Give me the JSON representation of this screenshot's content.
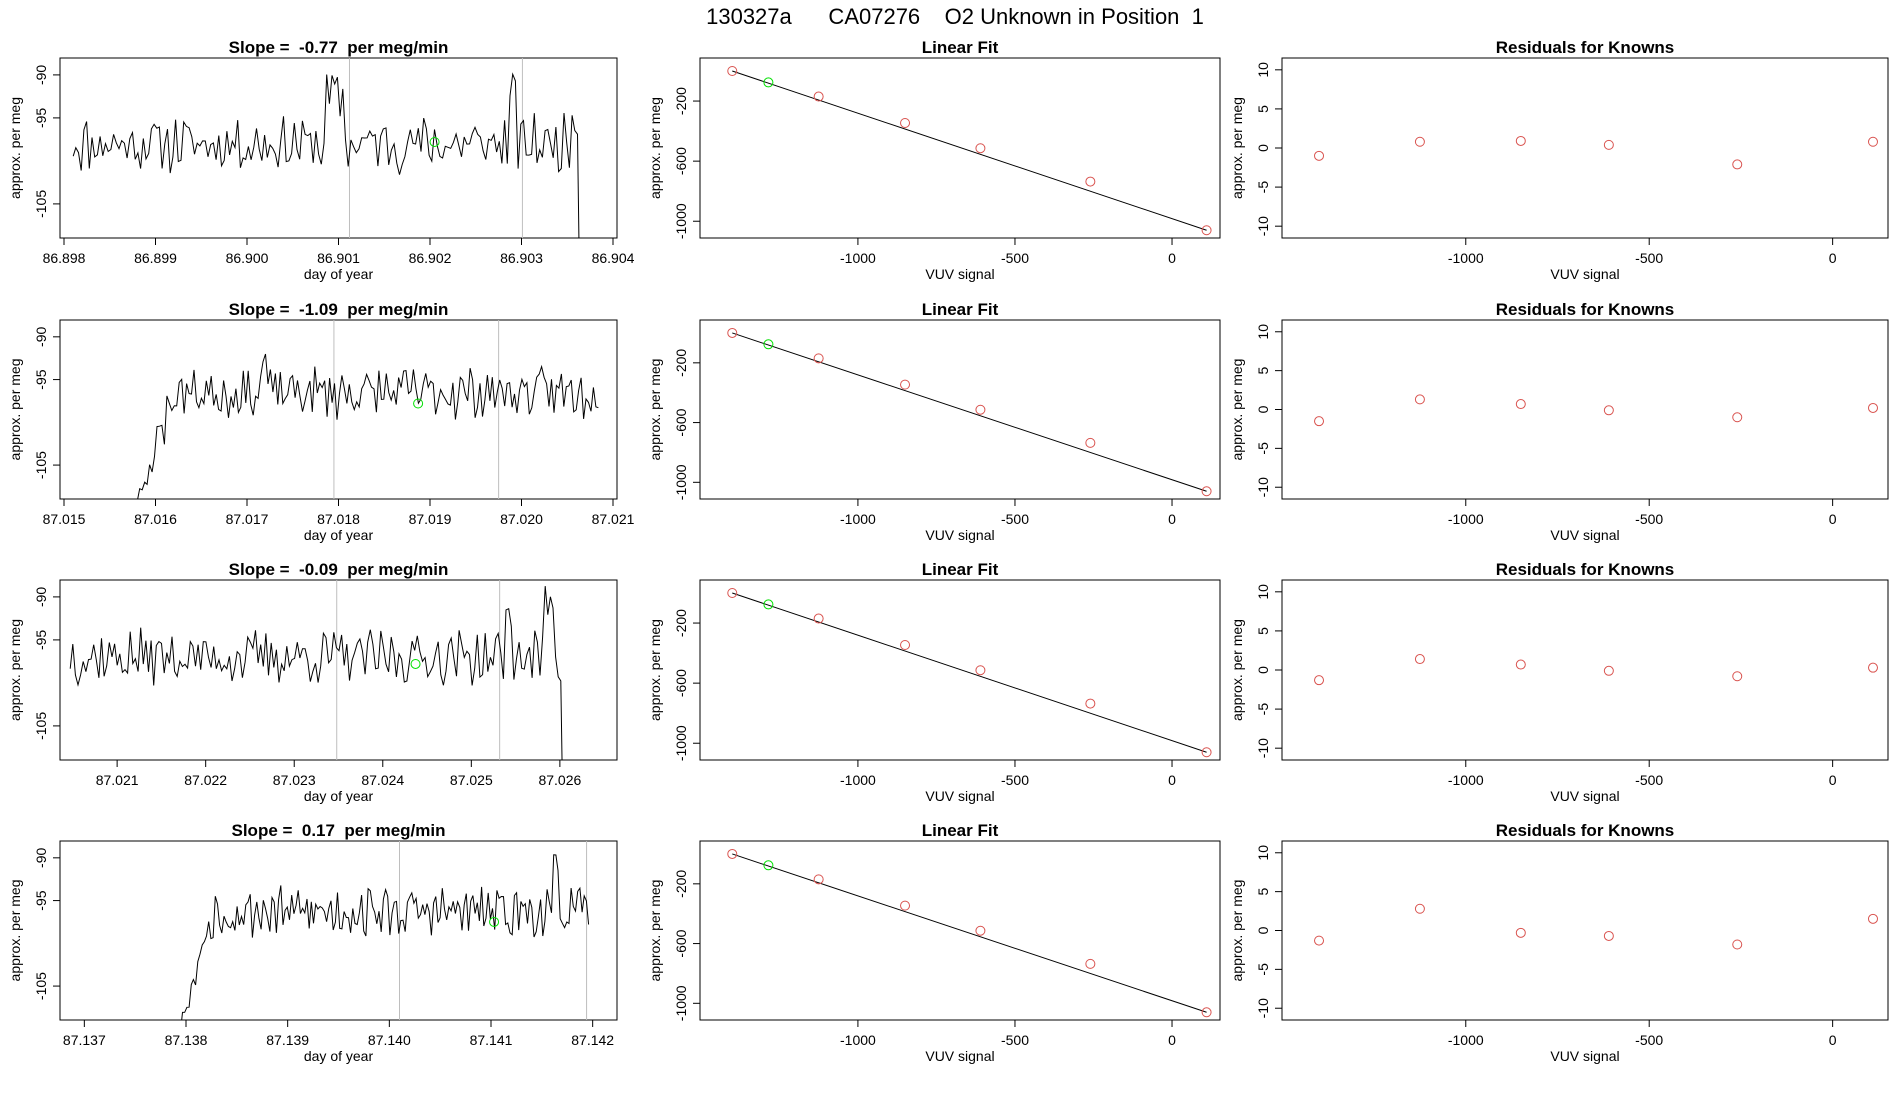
{
  "page_title": "130327a      CA07276    O2 Unknown in Position  1",
  "colors": {
    "trace": "#000000",
    "vline": "#bebebe",
    "known_point": "#d9534f",
    "unknown_point": "#00e000",
    "fit_line": "#000000"
  },
  "chart_data": [
    {
      "type": "line",
      "row": 0,
      "kind": "timeseries",
      "title": "Slope =  -0.77  per meg/min",
      "xlabel": "day of year",
      "ylabel": "approx. per meg",
      "xlim": [
        86.898,
        86.904
      ],
      "ylim": [
        -108.5,
        -88.5
      ],
      "xticks": [
        "86.898",
        "86.899",
        "86.900",
        "86.901",
        "86.902",
        "86.903",
        "86.904"
      ],
      "yticks": [
        -105,
        -95,
        -90
      ],
      "t_start": 86.8981,
      "t_end": 86.9037,
      "seed": 11,
      "base": -98,
      "noise": 2.8,
      "features": [
        [
          86.90085,
          86.90105,
          5.5
        ],
        [
          86.90285,
          86.90295,
          5.0
        ],
        [
          86.90355,
          86.90362,
          3.5
        ]
      ],
      "drop_at": 86.90362,
      "rise_until": null,
      "vlines": [
        86.90112,
        86.90301
      ],
      "unknown": {
        "x": 86.90205,
        "y": -97.8
      }
    },
    {
      "type": "line",
      "row": 0,
      "kind": "linearfit",
      "title": "Linear Fit",
      "xlabel": "VUV signal",
      "ylabel": "approx. per meg",
      "xlim": [
        -1490,
        140
      ],
      "ylim": [
        -1085,
        60
      ],
      "xticks": [
        -1000,
        -500,
        0
      ],
      "yticks": [
        -1000,
        -600,
        -200
      ],
      "fit": {
        "x": [
          -1400,
          110
        ],
        "y": [
          0,
          -1060
        ]
      },
      "knowns": {
        "x": [
          -1400,
          -1125,
          -850,
          -610,
          -260,
          110
        ],
        "y": [
          0,
          -170,
          -346,
          -514,
          -736,
          -1060
        ]
      },
      "unknown": {
        "x": -1285,
        "y": -76
      }
    },
    {
      "type": "scatter",
      "row": 0,
      "kind": "residuals",
      "title": "Residuals for Knowns",
      "xlabel": "VUV signal",
      "ylabel": "approx. per meg",
      "xlim": [
        -1490,
        140
      ],
      "ylim": [
        -11,
        11
      ],
      "xticks": [
        -1000,
        -500,
        0
      ],
      "yticks": [
        -10,
        -5,
        0,
        5,
        10
      ],
      "x": [
        -1400,
        -1125,
        -850,
        -610,
        -260,
        110
      ],
      "y": [
        -1.0,
        0.8,
        0.9,
        0.4,
        -2.1,
        0.8
      ]
    },
    {
      "type": "line",
      "row": 1,
      "kind": "timeseries",
      "title": "Slope =  -1.09  per meg/min",
      "xlabel": "day of year",
      "ylabel": "approx. per meg",
      "xlim": [
        87.015,
        87.021
      ],
      "ylim": [
        -108.5,
        -88.5
      ],
      "xticks": [
        "87.015",
        "87.016",
        "87.017",
        "87.018",
        "87.019",
        "87.020",
        "87.021"
      ],
      "yticks": [
        -105,
        -95,
        -90
      ],
      "t_start": 87.01572,
      "t_end": 87.02084,
      "seed": 23,
      "base": -96.5,
      "noise": 2.6,
      "features": [
        [
          87.01715,
          87.01722,
          4.5
        ]
      ],
      "drop_at": null,
      "rise_until": 87.0162,
      "vlines": [
        87.01795,
        87.01975
      ],
      "unknown": {
        "x": 87.01887,
        "y": -97.8
      }
    },
    {
      "type": "line",
      "row": 1,
      "kind": "linearfit",
      "title": "Linear Fit",
      "xlabel": "VUV signal",
      "ylabel": "approx. per meg",
      "xlim": [
        -1490,
        140
      ],
      "ylim": [
        -1085,
        60
      ],
      "xticks": [
        -1000,
        -500,
        0
      ],
      "yticks": [
        -1000,
        -600,
        -200
      ],
      "fit": {
        "x": [
          -1400,
          110
        ],
        "y": [
          0,
          -1060
        ]
      },
      "knowns": {
        "x": [
          -1400,
          -1125,
          -850,
          -610,
          -260,
          110
        ],
        "y": [
          0,
          -170,
          -346,
          -514,
          -736,
          -1060
        ]
      },
      "unknown": {
        "x": -1285,
        "y": -76
      }
    },
    {
      "type": "scatter",
      "row": 1,
      "kind": "residuals",
      "title": "Residuals for Knowns",
      "xlabel": "VUV signal",
      "ylabel": "approx. per meg",
      "xlim": [
        -1490,
        140
      ],
      "ylim": [
        -11,
        11
      ],
      "xticks": [
        -1000,
        -500,
        0
      ],
      "yticks": [
        -10,
        -5,
        0,
        5,
        10
      ],
      "x": [
        -1400,
        -1125,
        -850,
        -610,
        -260,
        110
      ],
      "y": [
        -1.5,
        1.3,
        0.7,
        -0.1,
        -1.0,
        0.2
      ]
    },
    {
      "type": "line",
      "row": 2,
      "kind": "timeseries",
      "title": "Slope =  -0.09  per meg/min",
      "xlabel": "day of year",
      "ylabel": "approx. per meg",
      "xlim": [
        87.0204,
        87.0266
      ],
      "ylim": [
        -108.5,
        -88.5
      ],
      "xticks": [
        "87.021",
        "87.022",
        "87.023",
        "87.024",
        "87.025",
        "87.026"
      ],
      "yticks": [
        -105,
        -95,
        -90
      ],
      "t_start": 87.02047,
      "t_end": 87.02607,
      "seed": 37,
      "base": -97,
      "noise": 2.7,
      "features": [
        [
          87.02538,
          87.02548,
          4.0
        ],
        [
          87.02583,
          87.02593,
          7.0
        ]
      ],
      "drop_at": 87.02602,
      "rise_until": null,
      "vlines": [
        87.02348,
        87.02532
      ],
      "unknown": {
        "x": 87.02437,
        "y": -97.8
      }
    },
    {
      "type": "line",
      "row": 2,
      "kind": "linearfit",
      "title": "Linear Fit",
      "xlabel": "VUV signal",
      "ylabel": "approx. per meg",
      "xlim": [
        -1490,
        140
      ],
      "ylim": [
        -1085,
        60
      ],
      "xticks": [
        -1000,
        -500,
        0
      ],
      "yticks": [
        -1000,
        -600,
        -200
      ],
      "fit": {
        "x": [
          -1400,
          110
        ],
        "y": [
          0,
          -1060
        ]
      },
      "knowns": {
        "x": [
          -1400,
          -1125,
          -850,
          -610,
          -260,
          110
        ],
        "y": [
          0,
          -170,
          -346,
          -514,
          -736,
          -1060
        ]
      },
      "unknown": {
        "x": -1285,
        "y": -76
      }
    },
    {
      "type": "scatter",
      "row": 2,
      "kind": "residuals",
      "title": "Residuals for Knowns",
      "xlabel": "VUV signal",
      "ylabel": "approx. per meg",
      "xlim": [
        -1490,
        140
      ],
      "ylim": [
        -11,
        11
      ],
      "xticks": [
        -1000,
        -500,
        0
      ],
      "yticks": [
        -10,
        -5,
        0,
        5,
        10
      ],
      "x": [
        -1400,
        -1125,
        -850,
        -610,
        -260,
        110
      ],
      "y": [
        -1.3,
        1.4,
        0.7,
        -0.1,
        -0.8,
        0.3
      ]
    },
    {
      "type": "line",
      "row": 3,
      "kind": "timeseries",
      "title": "Slope =  0.17  per meg/min",
      "xlabel": "day of year",
      "ylabel": "approx. per meg",
      "xlim": [
        87.1368,
        87.1422
      ],
      "ylim": [
        -108.5,
        -88.5
      ],
      "xticks": [
        "87.137",
        "87.138",
        "87.139",
        "87.140",
        "87.141",
        "87.142"
      ],
      "yticks": [
        -105,
        -95,
        -90
      ],
      "t_start": 87.13788,
      "t_end": 87.14196,
      "seed": 53,
      "base": -96.3,
      "noise": 2.5,
      "features": [
        [
          87.14161,
          87.14168,
          3.8
        ]
      ],
      "drop_at": null,
      "rise_until": 87.13826,
      "vlines": [
        87.1401,
        87.14194
      ],
      "unknown": {
        "x": 87.14103,
        "y": -97.5
      }
    },
    {
      "type": "line",
      "row": 3,
      "kind": "linearfit",
      "title": "Linear Fit",
      "xlabel": "VUV signal",
      "ylabel": "approx. per meg",
      "xlim": [
        -1490,
        140
      ],
      "ylim": [
        -1085,
        60
      ],
      "xticks": [
        -1000,
        -500,
        0
      ],
      "yticks": [
        -1000,
        -600,
        -200
      ],
      "fit": {
        "x": [
          -1400,
          110
        ],
        "y": [
          0,
          -1060
        ]
      },
      "knowns": {
        "x": [
          -1400,
          -1125,
          -850,
          -610,
          -260,
          110
        ],
        "y": [
          0,
          -170,
          -346,
          -514,
          -736,
          -1060
        ]
      },
      "unknown": {
        "x": -1285,
        "y": -76
      }
    },
    {
      "type": "scatter",
      "row": 3,
      "kind": "residuals",
      "title": "Residuals for Knowns",
      "xlabel": "VUV signal",
      "ylabel": "approx. per meg",
      "xlim": [
        -1490,
        140
      ],
      "ylim": [
        -11,
        11
      ],
      "xticks": [
        -1000,
        -500,
        0
      ],
      "yticks": [
        -10,
        -5,
        0,
        5,
        10
      ],
      "x": [
        -1400,
        -1125,
        -850,
        -610,
        -260,
        110
      ],
      "y": [
        -1.3,
        2.8,
        -0.3,
        -0.7,
        -1.8,
        1.5
      ]
    }
  ]
}
